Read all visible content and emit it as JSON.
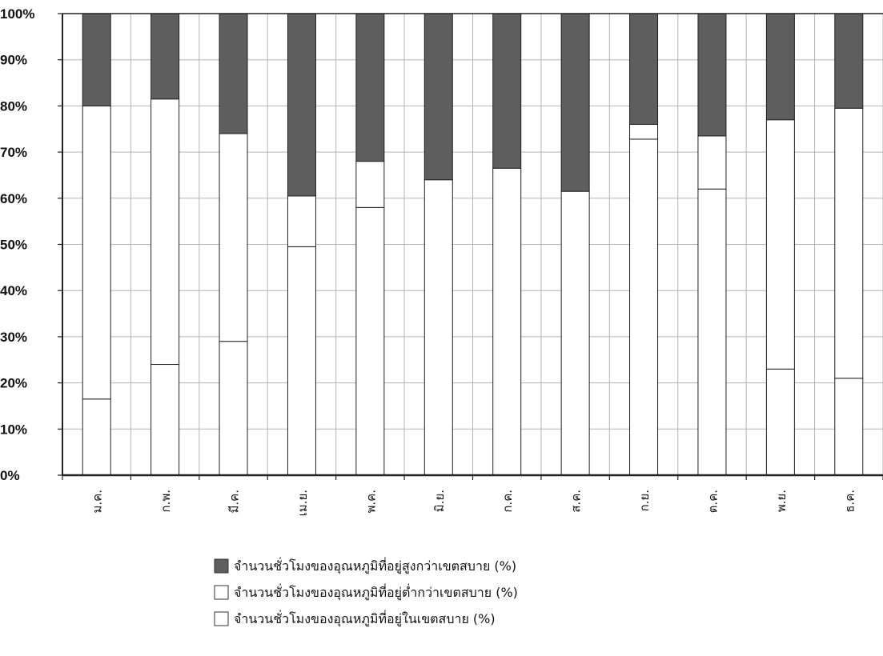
{
  "chart_data": {
    "type": "bar",
    "stacked": true,
    "percent_stacked": true,
    "categories": [
      "ม.ค.",
      "ก.พ.",
      "มี.ค.",
      "เม.ย.",
      "พ.ค.",
      "มิ.ย.",
      "ก.ค.",
      "ส.ค.",
      "ก.ย.",
      "ต.ค.",
      "พ.ย.",
      "ธ.ค."
    ],
    "series": [
      {
        "name": "จำนวนชั่วโมงของอุณหภูมิที่อยู่ต่ำกว่าเขตสบาย (%)",
        "values": [
          16.5,
          24,
          29,
          49.5,
          58,
          0,
          0,
          0,
          72.8,
          62,
          23,
          21
        ],
        "color": "#ffffff"
      },
      {
        "name": "จำนวนชั่วโมงของอุณหภูมิที่อยู่ในเขตสบาย (%)",
        "values": [
          63.5,
          57.5,
          45,
          11,
          10,
          64,
          66.5,
          61.5,
          3.2,
          11.5,
          54,
          58.5
        ],
        "color": "#ffffff"
      },
      {
        "name": "จำนวนชั่วโมงของอุณหภูมิที่อยู่สูงกว่าเขตสบาย (%)",
        "values": [
          20,
          18.5,
          26,
          39.5,
          32,
          36,
          33.5,
          38.5,
          24,
          26.5,
          23,
          20.5
        ],
        "color": "#5e5e5e"
      }
    ],
    "legend_order": [
      2,
      0,
      1
    ],
    "ylim": [
      0,
      100
    ],
    "yticks": [
      "0%",
      "10%",
      "20%",
      "30%",
      "40%",
      "50%",
      "60%",
      "70%",
      "80%",
      "90%",
      "100%"
    ],
    "grid": true,
    "legend_position": "bottom",
    "xlabel": "",
    "ylabel": "",
    "title": ""
  }
}
